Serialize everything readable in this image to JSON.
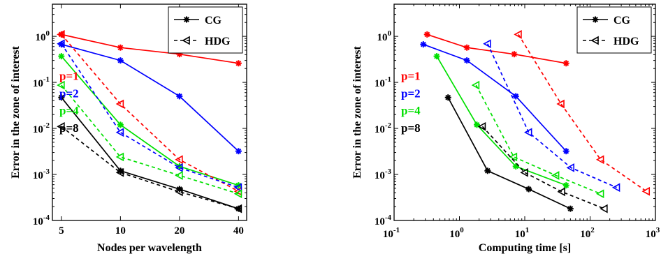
{
  "colors": {
    "p1": "#ff0000",
    "p2": "#0000ff",
    "p4": "#00e000",
    "p8": "#000000"
  },
  "chart_data": [
    {
      "type": "line",
      "xscale": "log",
      "yscale": "log",
      "xlabel": "Nodes per wavelength",
      "ylabel": "Error in the zone of interest",
      "xlim": [
        4.5,
        44
      ],
      "ylim": [
        0.0001,
        5
      ],
      "xticks": [
        5,
        10,
        20,
        40
      ],
      "xtick_labels": [
        "5",
        "10",
        "20",
        "40"
      ],
      "yticks": [
        0.0001,
        0.001,
        0.01,
        0.1,
        1
      ],
      "ytick_labels": [
        [
          "10",
          "-4"
        ],
        [
          "10",
          "-3"
        ],
        [
          "10",
          "-2"
        ],
        [
          "10",
          "-1"
        ],
        [
          "10",
          "0"
        ]
      ],
      "legend": {
        "position": "top-right",
        "entries": [
          {
            "label": "CG",
            "style": "solid-star"
          },
          {
            "label": "HDG",
            "style": "dashed-triangle"
          }
        ]
      },
      "annotations": [
        {
          "text": "p=1",
          "color": "p1"
        },
        {
          "text": "p=2",
          "color": "p2"
        },
        {
          "text": "p=4",
          "color": "p4"
        },
        {
          "text": "p=8",
          "color": "p8"
        }
      ],
      "series": [
        {
          "method": "CG",
          "color": "p1",
          "x": [
            5,
            10,
            20,
            40
          ],
          "y": [
            1.1,
            0.57,
            0.41,
            0.26
          ]
        },
        {
          "method": "CG",
          "color": "p2",
          "x": [
            5,
            10,
            20,
            40
          ],
          "y": [
            0.67,
            0.3,
            0.05,
            0.0032
          ]
        },
        {
          "method": "CG",
          "color": "p4",
          "x": [
            5,
            10,
            20,
            40
          ],
          "y": [
            0.37,
            0.012,
            0.0015,
            0.00058
          ]
        },
        {
          "method": "CG",
          "color": "p8",
          "x": [
            5,
            10,
            20,
            40
          ],
          "y": [
            0.047,
            0.0012,
            0.00048,
            0.00018
          ]
        },
        {
          "method": "HDG",
          "color": "p1",
          "x": [
            5,
            10,
            20,
            40
          ],
          "y": [
            1.1,
            0.034,
            0.0021,
            0.00043
          ]
        },
        {
          "method": "HDG",
          "color": "p2",
          "x": [
            5,
            10,
            20,
            40
          ],
          "y": [
            0.69,
            0.0082,
            0.0014,
            0.00052
          ]
        },
        {
          "method": "HDG",
          "color": "p4",
          "x": [
            5,
            10,
            20,
            40
          ],
          "y": [
            0.087,
            0.0024,
            0.00095,
            0.00038
          ]
        },
        {
          "method": "HDG",
          "color": "p8",
          "x": [
            5,
            10,
            20,
            40
          ],
          "y": [
            0.011,
            0.0011,
            0.00042,
            0.00018
          ]
        }
      ]
    },
    {
      "type": "line",
      "xscale": "log",
      "yscale": "log",
      "xlabel": "Computing time [s]",
      "ylabel": "Error in the zone of interest",
      "xlim": [
        0.1,
        1000
      ],
      "ylim": [
        0.0001,
        5
      ],
      "xticks": [
        0.1,
        1,
        10,
        100,
        1000
      ],
      "xtick_labels": [
        [
          "10",
          "-1"
        ],
        [
          "10",
          "0"
        ],
        [
          "10",
          "1"
        ],
        [
          "10",
          "2"
        ],
        [
          "10",
          "3"
        ]
      ],
      "yticks": [
        0.0001,
        0.001,
        0.01,
        0.1,
        1
      ],
      "ytick_labels": [
        [
          "10",
          "-4"
        ],
        [
          "10",
          "-3"
        ],
        [
          "10",
          "-2"
        ],
        [
          "10",
          "-1"
        ],
        [
          "10",
          "0"
        ]
      ],
      "legend": {
        "position": "top-right",
        "entries": [
          {
            "label": "CG",
            "style": "solid-star"
          },
          {
            "label": "HDG",
            "style": "dashed-triangle"
          }
        ]
      },
      "annotations": [
        {
          "text": "p=1",
          "color": "p1"
        },
        {
          "text": "p=2",
          "color": "p2"
        },
        {
          "text": "p=4",
          "color": "p4"
        },
        {
          "text": "p=8",
          "color": "p8"
        }
      ],
      "series": [
        {
          "method": "CG",
          "color": "p1",
          "x": [
            0.32,
            1.3,
            6.9,
            43
          ],
          "y": [
            1.1,
            0.57,
            0.41,
            0.26
          ]
        },
        {
          "method": "CG",
          "color": "p2",
          "x": [
            0.28,
            1.3,
            7.3,
            43
          ],
          "y": [
            0.67,
            0.3,
            0.05,
            0.0032
          ]
        },
        {
          "method": "CG",
          "color": "p4",
          "x": [
            0.45,
            1.85,
            7.3,
            43
          ],
          "y": [
            0.37,
            0.012,
            0.0015,
            0.00058
          ]
        },
        {
          "method": "CG",
          "color": "p8",
          "x": [
            0.67,
            2.7,
            11.5,
            50
          ],
          "y": [
            0.047,
            0.0012,
            0.00048,
            0.00018
          ]
        },
        {
          "method": "HDG",
          "color": "p1",
          "x": [
            8,
            36,
            145,
            730
          ],
          "y": [
            1.1,
            0.034,
            0.0021,
            0.00043
          ]
        },
        {
          "method": "HDG",
          "color": "p2",
          "x": [
            2.7,
            11.5,
            51,
            255
          ],
          "y": [
            0.69,
            0.0082,
            0.0014,
            0.00052
          ]
        },
        {
          "method": "HDG",
          "color": "p4",
          "x": [
            1.8,
            6.8,
            30,
            145
          ],
          "y": [
            0.087,
            0.0024,
            0.00095,
            0.00038
          ]
        },
        {
          "method": "HDG",
          "color": "p8",
          "x": [
            2.25,
            10,
            37,
            165
          ],
          "y": [
            0.011,
            0.0011,
            0.00042,
            0.00018
          ]
        }
      ]
    }
  ]
}
